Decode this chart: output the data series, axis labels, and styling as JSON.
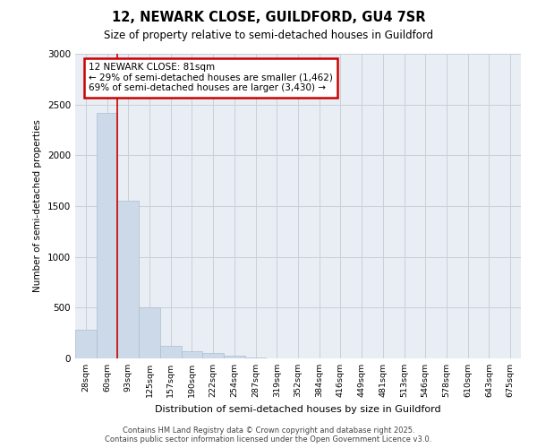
{
  "title_line1": "12, NEWARK CLOSE, GUILDFORD, GU4 7SR",
  "title_line2": "Size of property relative to semi-detached houses in Guildford",
  "xlabel": "Distribution of semi-detached houses by size in Guildford",
  "ylabel": "Number of semi-detached properties",
  "bins": [
    "28sqm",
    "60sqm",
    "93sqm",
    "125sqm",
    "157sqm",
    "190sqm",
    "222sqm",
    "254sqm",
    "287sqm",
    "319sqm",
    "352sqm",
    "384sqm",
    "416sqm",
    "449sqm",
    "481sqm",
    "513sqm",
    "546sqm",
    "578sqm",
    "610sqm",
    "643sqm",
    "675sqm"
  ],
  "values": [
    280,
    2420,
    1550,
    500,
    125,
    70,
    50,
    30,
    5,
    2,
    1,
    0,
    0,
    0,
    0,
    0,
    0,
    0,
    0,
    0,
    0
  ],
  "bar_color": "#ccd9e8",
  "bar_edge_color": "#aabfcf",
  "vline_color": "#cc0000",
  "vline_label_text": "12 NEWARK CLOSE: 81sqm",
  "vline_smaller_text": "← 29% of semi-detached houses are smaller (1,462)",
  "vline_larger_text": "69% of semi-detached houses are larger (3,430) →",
  "annotation_box_color": "#cc0000",
  "ylim": [
    0,
    3000
  ],
  "yticks": [
    0,
    500,
    1000,
    1500,
    2000,
    2500,
    3000
  ],
  "grid_color": "#c8d0d8",
  "bg_color": "#e8eef4",
  "footer_line1": "Contains HM Land Registry data © Crown copyright and database right 2025.",
  "footer_line2": "Contains public sector information licensed under the Open Government Licence v3.0."
}
